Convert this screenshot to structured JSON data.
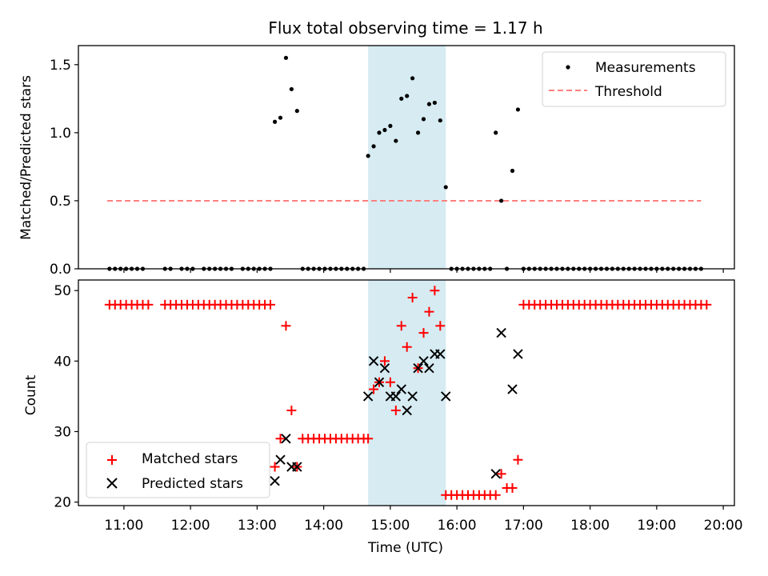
{
  "figure": {
    "title": "Flux total observing time = 1.17 h",
    "shade_color": "#add8e6"
  },
  "chart_data": [
    {
      "type": "scatter",
      "ylabel": "Matched/Predicted stars",
      "xlim": [
        "10:19",
        "20:10"
      ],
      "ylim": [
        0,
        1.64
      ],
      "yticks": [
        0.0,
        0.5,
        1.0,
        1.5
      ],
      "ytick_labels": [
        "0.0",
        "0.5",
        "1.0",
        "1.5"
      ],
      "shaded_span": [
        "14:40",
        "15:50"
      ],
      "legend_position": "upper right",
      "threshold": {
        "name": "Threshold",
        "value": 0.5,
        "x_range": [
          "10:45",
          "19:40"
        ],
        "color": "#ff7f7f",
        "style": "dashed"
      },
      "series": [
        {
          "name": "Measurements",
          "color": "#000000",
          "marker": "dot",
          "x": [
            "10:47",
            "10:52",
            "10:57",
            "11:02",
            "11:07",
            "11:12",
            "11:17",
            "11:37",
            "11:42",
            "11:52",
            "11:57",
            "12:02",
            "12:12",
            "12:17",
            "12:22",
            "12:27",
            "12:32",
            "12:37",
            "12:47",
            "12:52",
            "12:57",
            "13:02",
            "13:07",
            "13:12",
            "13:16",
            "13:21",
            "13:26",
            "13:31",
            "13:36",
            "13:41",
            "13:46",
            "13:51",
            "13:56",
            "14:01",
            "14:06",
            "14:11",
            "14:16",
            "14:21",
            "14:26",
            "14:31",
            "14:36",
            "14:40",
            "14:45",
            "14:50",
            "14:55",
            "15:00",
            "15:05",
            "15:10",
            "15:15",
            "15:20",
            "15:25",
            "15:30",
            "15:35",
            "15:40",
            "15:45",
            "15:50",
            "15:55",
            "16:00",
            "16:05",
            "16:10",
            "16:15",
            "16:20",
            "16:25",
            "16:30",
            "16:35",
            "16:40",
            "16:45",
            "16:50",
            "16:55",
            "17:00",
            "17:05",
            "17:10",
            "17:15",
            "17:20",
            "17:25",
            "17:30",
            "17:35",
            "17:40",
            "17:45",
            "17:50",
            "17:55",
            "18:00",
            "18:05",
            "18:10",
            "18:15",
            "18:20",
            "18:25",
            "18:30",
            "18:35",
            "18:40",
            "18:45",
            "18:50",
            "18:55",
            "19:00",
            "19:05",
            "19:10",
            "19:15",
            "19:20",
            "19:25",
            "19:30",
            "19:35",
            "19:40"
          ],
          "y": [
            0,
            0,
            0,
            0,
            0,
            0,
            0,
            0,
            0,
            0,
            0,
            0,
            0,
            0,
            0,
            0,
            0,
            0,
            0,
            0,
            0,
            0,
            0,
            0,
            1.08,
            1.11,
            1.55,
            1.32,
            1.16,
            0,
            0,
            0,
            0,
            0,
            0,
            0,
            0,
            0,
            0,
            0,
            0,
            0.83,
            0.9,
            1.0,
            1.02,
            1.05,
            0.94,
            1.25,
            1.27,
            1.4,
            1.0,
            1.1,
            1.21,
            1.22,
            1.09,
            0.6,
            0,
            0,
            0,
            0,
            0,
            0,
            0,
            0,
            1.0,
            0.5,
            0,
            0.72,
            1.17,
            0,
            0,
            0,
            0,
            0,
            0,
            0,
            0,
            0,
            0,
            0,
            0,
            0,
            0,
            0,
            0,
            0,
            0,
            0,
            0,
            0,
            0,
            0,
            0,
            0,
            0,
            0,
            0,
            0,
            0,
            0,
            0,
            0
          ]
        }
      ]
    },
    {
      "type": "scatter",
      "xlabel": "Time (UTC)",
      "ylabel": "Count",
      "xlim": [
        "10:19",
        "20:10"
      ],
      "ylim": [
        19.5,
        51.5
      ],
      "yticks": [
        20,
        30,
        40,
        50
      ],
      "ytick_labels": [
        "20",
        "30",
        "40",
        "50"
      ],
      "xticks": [
        "11:00",
        "12:00",
        "13:00",
        "14:00",
        "15:00",
        "16:00",
        "17:00",
        "18:00",
        "19:00",
        "20:00"
      ],
      "xtick_labels": [
        "11:00",
        "12:00",
        "13:00",
        "14:00",
        "15:00",
        "16:00",
        "17:00",
        "18:00",
        "19:00",
        "20:00"
      ],
      "shaded_span": [
        "14:40",
        "15:50"
      ],
      "legend_position": "lower left",
      "series": [
        {
          "name": "Matched stars",
          "color": "#ff0000",
          "marker": "plus",
          "x": [
            "10:47",
            "10:52",
            "10:57",
            "11:02",
            "11:07",
            "11:12",
            "11:17",
            "11:22",
            "11:37",
            "11:42",
            "11:47",
            "11:52",
            "11:57",
            "12:02",
            "12:07",
            "12:12",
            "12:17",
            "12:22",
            "12:27",
            "12:32",
            "12:37",
            "12:42",
            "12:47",
            "12:52",
            "12:57",
            "13:02",
            "13:07",
            "13:12",
            "13:16",
            "13:21",
            "13:26",
            "13:31",
            "13:36",
            "13:41",
            "13:46",
            "13:51",
            "13:56",
            "14:01",
            "14:06",
            "14:11",
            "14:16",
            "14:21",
            "14:26",
            "14:31",
            "14:36",
            "14:40",
            "14:45",
            "14:50",
            "14:55",
            "15:00",
            "15:05",
            "15:10",
            "15:15",
            "15:20",
            "15:25",
            "15:30",
            "15:35",
            "15:40",
            "15:45",
            "15:50",
            "15:55",
            "16:00",
            "16:05",
            "16:10",
            "16:15",
            "16:20",
            "16:25",
            "16:30",
            "16:35",
            "16:40",
            "16:45",
            "16:50",
            "16:55",
            "17:00",
            "17:05",
            "17:10",
            "17:15",
            "17:20",
            "17:25",
            "17:30",
            "17:35",
            "17:40",
            "17:45",
            "17:50",
            "17:55",
            "18:00",
            "18:05",
            "18:10",
            "18:15",
            "18:20",
            "18:25",
            "18:30",
            "18:35",
            "18:40",
            "18:45",
            "18:50",
            "18:55",
            "19:00",
            "19:05",
            "19:10",
            "19:15",
            "19:20",
            "19:25",
            "19:30",
            "19:35",
            "19:40",
            "19:45"
          ],
          "y": [
            48,
            48,
            48,
            48,
            48,
            48,
            48,
            48,
            48,
            48,
            48,
            48,
            48,
            48,
            48,
            48,
            48,
            48,
            48,
            48,
            48,
            48,
            48,
            48,
            48,
            48,
            48,
            48,
            25,
            29,
            45,
            33,
            25,
            29,
            29,
            29,
            29,
            29,
            29,
            29,
            29,
            29,
            29,
            29,
            29,
            29,
            36,
            37,
            40,
            37,
            33,
            45,
            42,
            49,
            39,
            44,
            47,
            50,
            45,
            21,
            21,
            21,
            21,
            21,
            21,
            21,
            21,
            21,
            21,
            24,
            22,
            22,
            26,
            48,
            48,
            48,
            48,
            48,
            48,
            48,
            48,
            48,
            48,
            48,
            48,
            48,
            48,
            48,
            48,
            48,
            48,
            48,
            48,
            48,
            48,
            48,
            48,
            48,
            48,
            48,
            48,
            48,
            48,
            48,
            48,
            48,
            48
          ]
        },
        {
          "name": "Predicted stars",
          "color": "#000000",
          "marker": "x",
          "x": [
            "13:16",
            "13:21",
            "13:26",
            "13:31",
            "13:36",
            "14:40",
            "14:45",
            "14:50",
            "14:55",
            "15:00",
            "15:05",
            "15:10",
            "15:15",
            "15:20",
            "15:25",
            "15:30",
            "15:35",
            "15:40",
            "15:45",
            "15:50",
            "16:35",
            "16:40",
            "16:50",
            "16:55"
          ],
          "y": [
            23,
            26,
            29,
            25,
            25,
            35,
            40,
            37,
            39,
            35,
            35,
            36,
            33,
            35,
            39,
            40,
            39,
            41,
            41,
            35,
            24,
            44,
            36,
            41
          ]
        }
      ]
    }
  ]
}
